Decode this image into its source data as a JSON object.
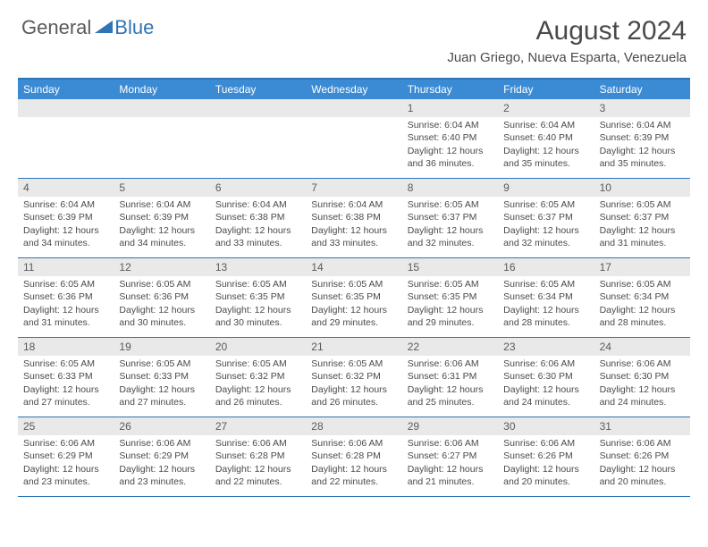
{
  "logo": {
    "part1": "General",
    "part2": "Blue"
  },
  "title": "August 2024",
  "location": "Juan Griego, Nueva Esparta, Venezuela",
  "colors": {
    "header_bar": "#3b8bd4",
    "border": "#2e75b6",
    "daynum_bg": "#e9e9e9",
    "text": "#4a4a4a"
  },
  "weekdays": [
    "Sunday",
    "Monday",
    "Tuesday",
    "Wednesday",
    "Thursday",
    "Friday",
    "Saturday"
  ],
  "weeks": [
    [
      {
        "n": "",
        "sr": "",
        "ss": "",
        "dl": ""
      },
      {
        "n": "",
        "sr": "",
        "ss": "",
        "dl": ""
      },
      {
        "n": "",
        "sr": "",
        "ss": "",
        "dl": ""
      },
      {
        "n": "",
        "sr": "",
        "ss": "",
        "dl": ""
      },
      {
        "n": "1",
        "sr": "Sunrise: 6:04 AM",
        "ss": "Sunset: 6:40 PM",
        "dl": "Daylight: 12 hours and 36 minutes."
      },
      {
        "n": "2",
        "sr": "Sunrise: 6:04 AM",
        "ss": "Sunset: 6:40 PM",
        "dl": "Daylight: 12 hours and 35 minutes."
      },
      {
        "n": "3",
        "sr": "Sunrise: 6:04 AM",
        "ss": "Sunset: 6:39 PM",
        "dl": "Daylight: 12 hours and 35 minutes."
      }
    ],
    [
      {
        "n": "4",
        "sr": "Sunrise: 6:04 AM",
        "ss": "Sunset: 6:39 PM",
        "dl": "Daylight: 12 hours and 34 minutes."
      },
      {
        "n": "5",
        "sr": "Sunrise: 6:04 AM",
        "ss": "Sunset: 6:39 PM",
        "dl": "Daylight: 12 hours and 34 minutes."
      },
      {
        "n": "6",
        "sr": "Sunrise: 6:04 AM",
        "ss": "Sunset: 6:38 PM",
        "dl": "Daylight: 12 hours and 33 minutes."
      },
      {
        "n": "7",
        "sr": "Sunrise: 6:04 AM",
        "ss": "Sunset: 6:38 PM",
        "dl": "Daylight: 12 hours and 33 minutes."
      },
      {
        "n": "8",
        "sr": "Sunrise: 6:05 AM",
        "ss": "Sunset: 6:37 PM",
        "dl": "Daylight: 12 hours and 32 minutes."
      },
      {
        "n": "9",
        "sr": "Sunrise: 6:05 AM",
        "ss": "Sunset: 6:37 PM",
        "dl": "Daylight: 12 hours and 32 minutes."
      },
      {
        "n": "10",
        "sr": "Sunrise: 6:05 AM",
        "ss": "Sunset: 6:37 PM",
        "dl": "Daylight: 12 hours and 31 minutes."
      }
    ],
    [
      {
        "n": "11",
        "sr": "Sunrise: 6:05 AM",
        "ss": "Sunset: 6:36 PM",
        "dl": "Daylight: 12 hours and 31 minutes."
      },
      {
        "n": "12",
        "sr": "Sunrise: 6:05 AM",
        "ss": "Sunset: 6:36 PM",
        "dl": "Daylight: 12 hours and 30 minutes."
      },
      {
        "n": "13",
        "sr": "Sunrise: 6:05 AM",
        "ss": "Sunset: 6:35 PM",
        "dl": "Daylight: 12 hours and 30 minutes."
      },
      {
        "n": "14",
        "sr": "Sunrise: 6:05 AM",
        "ss": "Sunset: 6:35 PM",
        "dl": "Daylight: 12 hours and 29 minutes."
      },
      {
        "n": "15",
        "sr": "Sunrise: 6:05 AM",
        "ss": "Sunset: 6:35 PM",
        "dl": "Daylight: 12 hours and 29 minutes."
      },
      {
        "n": "16",
        "sr": "Sunrise: 6:05 AM",
        "ss": "Sunset: 6:34 PM",
        "dl": "Daylight: 12 hours and 28 minutes."
      },
      {
        "n": "17",
        "sr": "Sunrise: 6:05 AM",
        "ss": "Sunset: 6:34 PM",
        "dl": "Daylight: 12 hours and 28 minutes."
      }
    ],
    [
      {
        "n": "18",
        "sr": "Sunrise: 6:05 AM",
        "ss": "Sunset: 6:33 PM",
        "dl": "Daylight: 12 hours and 27 minutes."
      },
      {
        "n": "19",
        "sr": "Sunrise: 6:05 AM",
        "ss": "Sunset: 6:33 PM",
        "dl": "Daylight: 12 hours and 27 minutes."
      },
      {
        "n": "20",
        "sr": "Sunrise: 6:05 AM",
        "ss": "Sunset: 6:32 PM",
        "dl": "Daylight: 12 hours and 26 minutes."
      },
      {
        "n": "21",
        "sr": "Sunrise: 6:05 AM",
        "ss": "Sunset: 6:32 PM",
        "dl": "Daylight: 12 hours and 26 minutes."
      },
      {
        "n": "22",
        "sr": "Sunrise: 6:06 AM",
        "ss": "Sunset: 6:31 PM",
        "dl": "Daylight: 12 hours and 25 minutes."
      },
      {
        "n": "23",
        "sr": "Sunrise: 6:06 AM",
        "ss": "Sunset: 6:30 PM",
        "dl": "Daylight: 12 hours and 24 minutes."
      },
      {
        "n": "24",
        "sr": "Sunrise: 6:06 AM",
        "ss": "Sunset: 6:30 PM",
        "dl": "Daylight: 12 hours and 24 minutes."
      }
    ],
    [
      {
        "n": "25",
        "sr": "Sunrise: 6:06 AM",
        "ss": "Sunset: 6:29 PM",
        "dl": "Daylight: 12 hours and 23 minutes."
      },
      {
        "n": "26",
        "sr": "Sunrise: 6:06 AM",
        "ss": "Sunset: 6:29 PM",
        "dl": "Daylight: 12 hours and 23 minutes."
      },
      {
        "n": "27",
        "sr": "Sunrise: 6:06 AM",
        "ss": "Sunset: 6:28 PM",
        "dl": "Daylight: 12 hours and 22 minutes."
      },
      {
        "n": "28",
        "sr": "Sunrise: 6:06 AM",
        "ss": "Sunset: 6:28 PM",
        "dl": "Daylight: 12 hours and 22 minutes."
      },
      {
        "n": "29",
        "sr": "Sunrise: 6:06 AM",
        "ss": "Sunset: 6:27 PM",
        "dl": "Daylight: 12 hours and 21 minutes."
      },
      {
        "n": "30",
        "sr": "Sunrise: 6:06 AM",
        "ss": "Sunset: 6:26 PM",
        "dl": "Daylight: 12 hours and 20 minutes."
      },
      {
        "n": "31",
        "sr": "Sunrise: 6:06 AM",
        "ss": "Sunset: 6:26 PM",
        "dl": "Daylight: 12 hours and 20 minutes."
      }
    ]
  ]
}
